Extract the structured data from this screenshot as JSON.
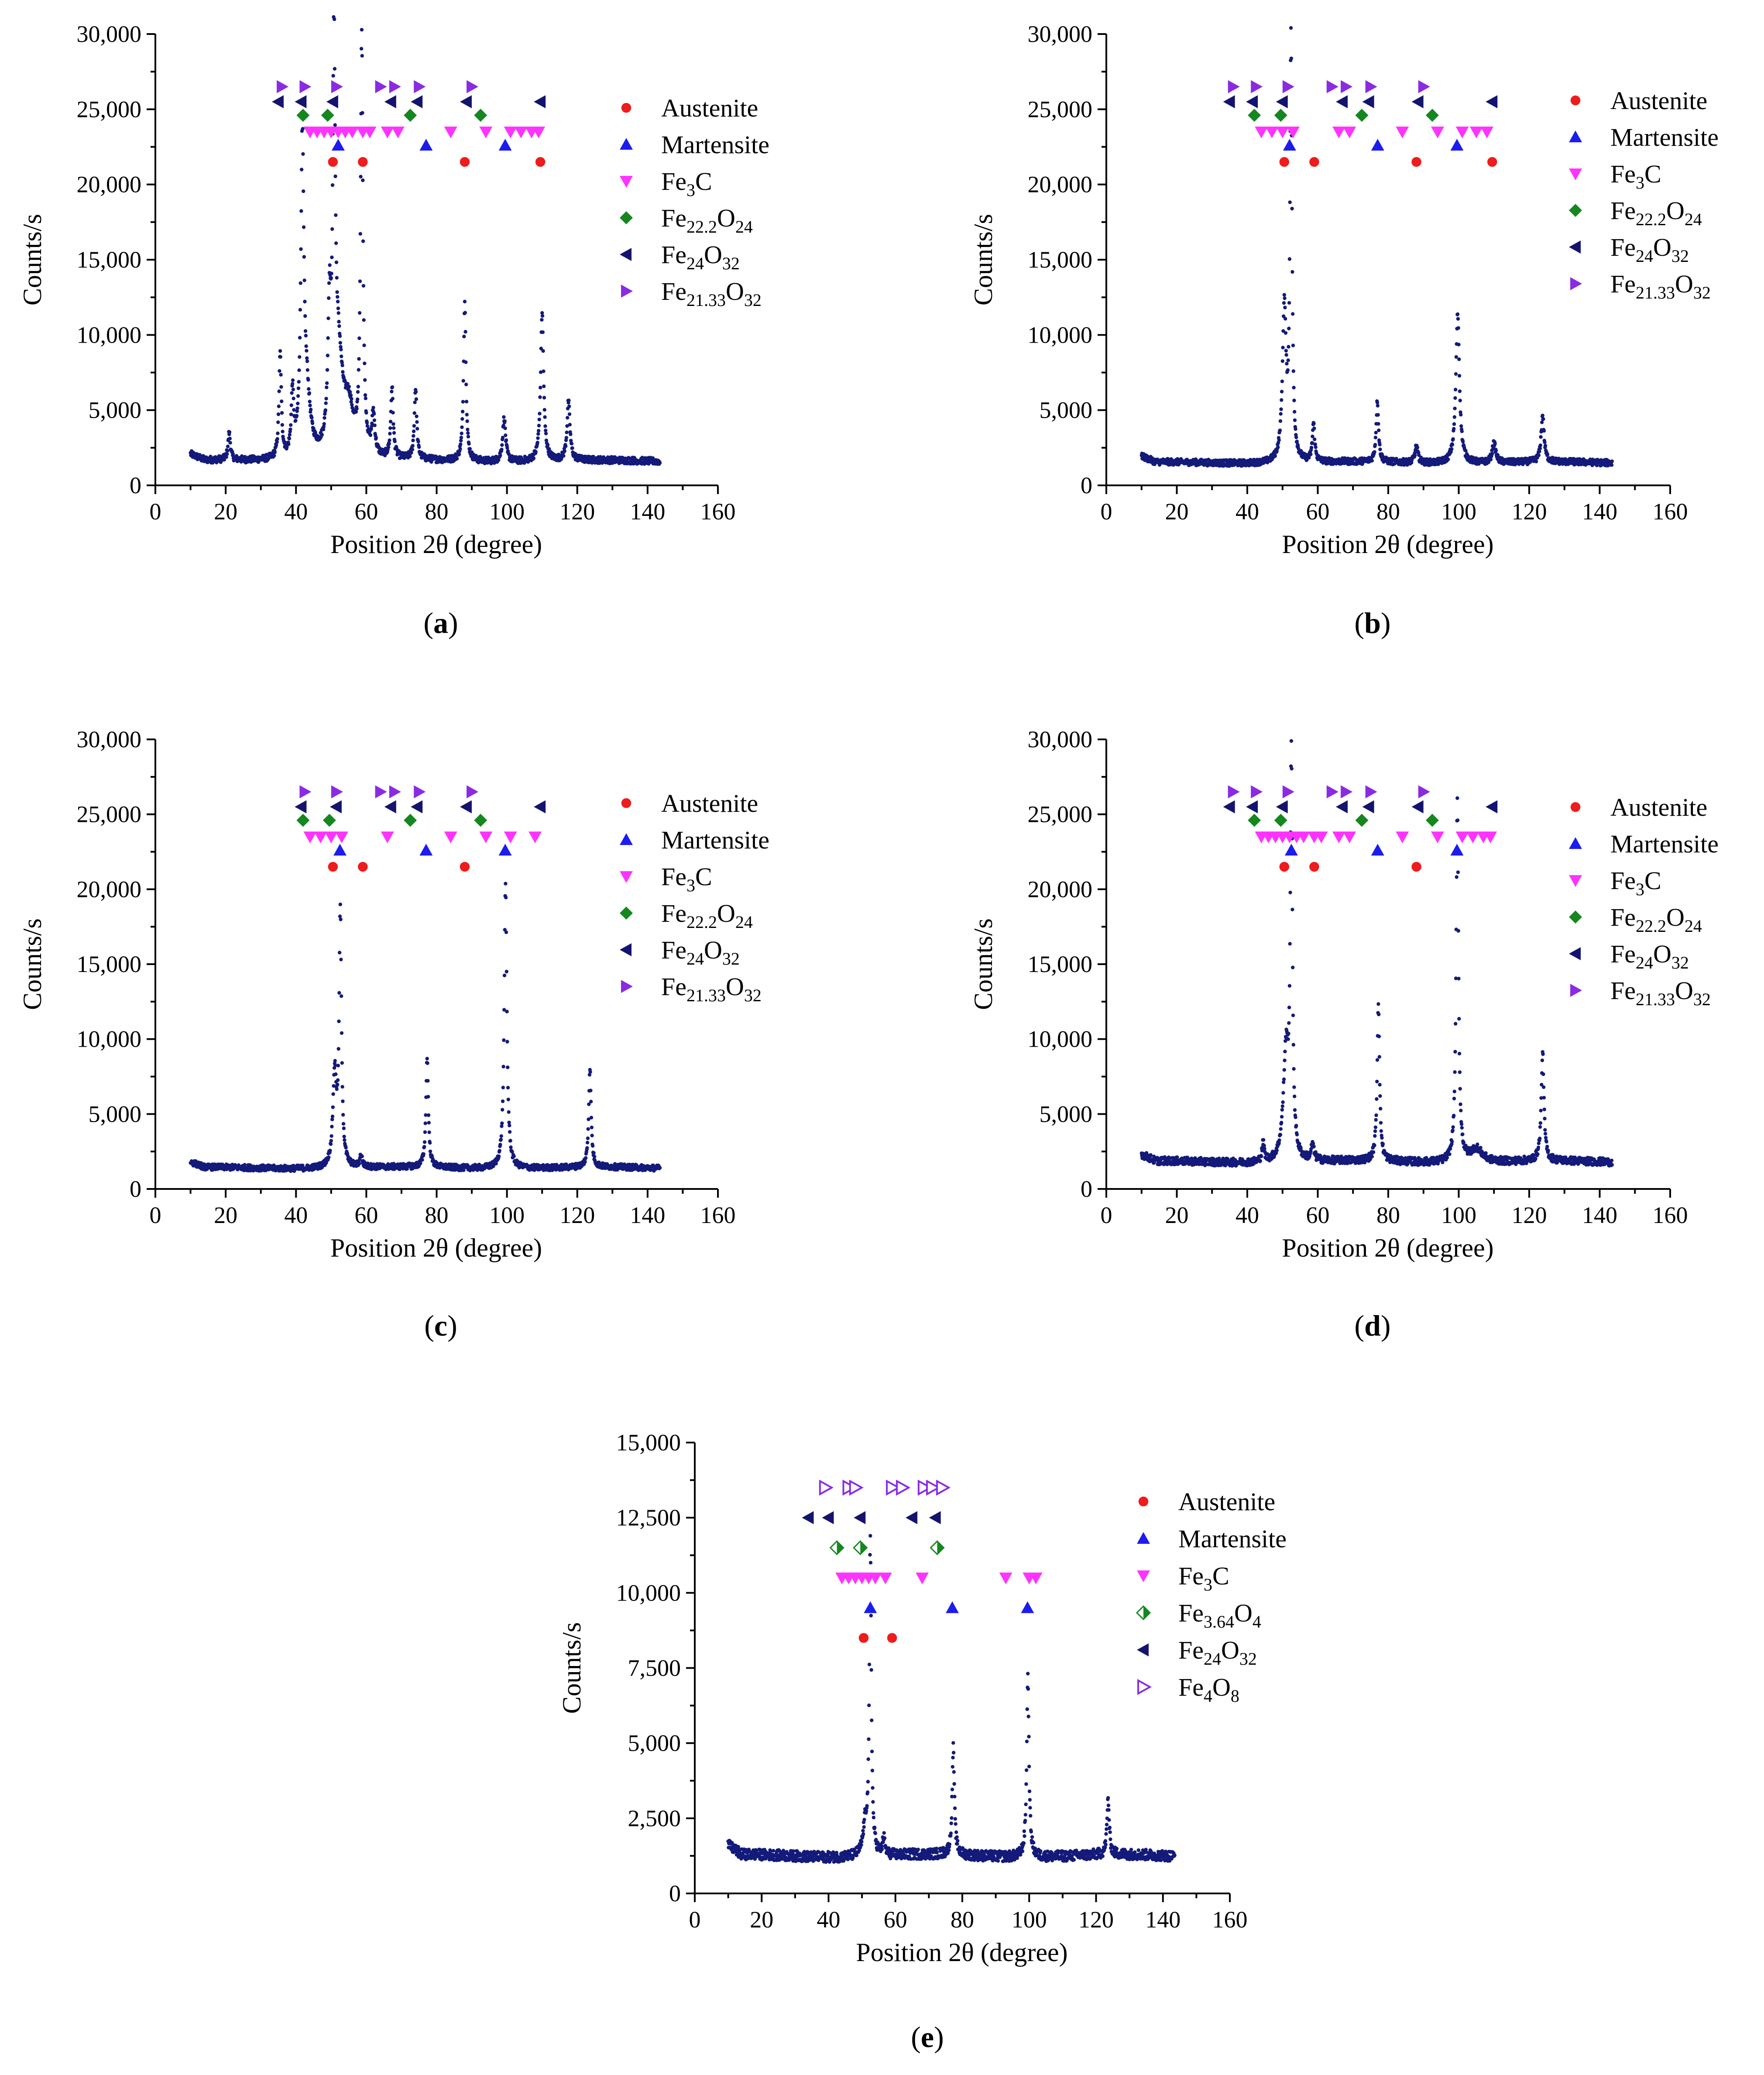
{
  "figure": {
    "colors": {
      "data": "#141a7a",
      "austenite": "#ee1c1c",
      "martensite": "#1c1cf0",
      "fe3c": "#ff33ff",
      "oxideA": "#15871f",
      "oxideB": "#14146e",
      "oxideC": "#8a2be2"
    }
  },
  "chart_data": [
    {
      "id": "a",
      "type": "scatter",
      "panel_label": "a",
      "xlabel": "Position 2θ (degree)",
      "ylabel": "Counts/s",
      "xlim": [
        0,
        160
      ],
      "ylim": [
        0,
        30000
      ],
      "xticks": [
        "0",
        "20",
        "40",
        "60",
        "80",
        "100",
        "120",
        "140",
        "160"
      ],
      "yticks": [
        "0",
        "5,000",
        "10,000",
        "15,000",
        "20,000",
        "25,000",
        "30,000"
      ],
      "ytick_values": [
        0,
        5000,
        10000,
        15000,
        20000,
        25000,
        30000
      ],
      "baseline": 1600,
      "peaks": [
        [
          21,
          3400,
          0.4
        ],
        [
          35.5,
          8500,
          0.4
        ],
        [
          39,
          5800,
          0.4
        ],
        [
          41.8,
          22000,
          0.5
        ],
        [
          43,
          5500,
          1.2
        ],
        [
          49.5,
          10000,
          0.5
        ],
        [
          50.8,
          27000,
          0.4
        ],
        [
          52,
          8000,
          1.5
        ],
        [
          55,
          4500,
          1.5
        ],
        [
          58.7,
          29500,
          0.4
        ],
        [
          62,
          4300,
          0.5
        ],
        [
          67.3,
          6300,
          0.4
        ],
        [
          74,
          6300,
          0.4
        ],
        [
          88,
          12200,
          0.4
        ],
        [
          99.2,
          4500,
          0.5
        ],
        [
          110,
          11500,
          0.5
        ],
        [
          117.5,
          5500,
          0.5
        ]
      ],
      "legend": [
        {
          "label": "Austenite",
          "marker": "circle",
          "color_key": "austenite"
        },
        {
          "label": "Martensite",
          "marker": "tri-up",
          "color_key": "martensite"
        },
        {
          "label": "Fe",
          "sub": "3",
          "label2": "C",
          "marker": "tri-down",
          "color_key": "fe3c"
        },
        {
          "label": "Fe",
          "sub": "22.2",
          "label2": "O",
          "sub2": "24",
          "marker": "diamond",
          "color_key": "oxideA"
        },
        {
          "label": "Fe",
          "sub": "24",
          "label2": "O",
          "sub2": "32",
          "marker": "tri-left",
          "color_key": "oxideB"
        },
        {
          "label": "Fe",
          "sub": "21.33",
          "label2": "O",
          "sub2": "32",
          "marker": "tri-right",
          "color_key": "oxideC"
        }
      ],
      "phase_markers": [
        {
          "marker": "circle",
          "color_key": "austenite",
          "y": 21500,
          "x": [
            50.5,
            59,
            88,
            109.5
          ]
        },
        {
          "marker": "tri-up",
          "color_key": "martensite",
          "y": 22600,
          "x": [
            52,
            77,
            99.5
          ]
        },
        {
          "marker": "tri-down",
          "color_key": "fe3c",
          "y": 23500,
          "x": [
            44,
            46,
            48,
            50,
            52,
            54,
            56,
            59,
            61,
            66,
            69,
            84,
            94,
            101,
            104,
            107,
            109
          ]
        },
        {
          "marker": "diamond",
          "color_key": "oxideA",
          "y": 24600,
          "x": [
            42,
            49,
            72.5,
            92.5
          ]
        },
        {
          "marker": "tri-left",
          "color_key": "oxideB",
          "y": 25500,
          "x": [
            35,
            41.5,
            50.5,
            67,
            74.5,
            88.5,
            109.5
          ]
        },
        {
          "marker": "tri-right",
          "color_key": "oxideC",
          "y": 26500,
          "x": [
            36,
            42.5,
            51.5,
            64,
            68,
            75,
            90
          ]
        }
      ]
    },
    {
      "id": "b",
      "type": "scatter",
      "panel_label": "b",
      "xlabel": "Position 2θ (degree)",
      "ylabel": "Counts/s",
      "xlim": [
        0,
        160
      ],
      "ylim": [
        0,
        30000
      ],
      "xticks": [
        "0",
        "20",
        "40",
        "60",
        "80",
        "100",
        "120",
        "140",
        "160"
      ],
      "yticks": [
        "0",
        "5,000",
        "10,000",
        "15,000",
        "20,000",
        "25,000",
        "30,000"
      ],
      "ytick_values": [
        0,
        5000,
        10000,
        15000,
        20000,
        25000,
        30000
      ],
      "baseline": 1500,
      "peaks": [
        [
          50.5,
          11700,
          0.6
        ],
        [
          52.4,
          29500,
          0.35
        ],
        [
          58.8,
          4000,
          0.4
        ],
        [
          76.9,
          5600,
          0.4
        ],
        [
          88,
          2600,
          0.5
        ],
        [
          99.7,
          11500,
          0.6
        ],
        [
          110,
          2800,
          0.6
        ],
        [
          123.8,
          4600,
          0.5
        ]
      ],
      "legend": [
        {
          "label": "Austenite",
          "marker": "circle",
          "color_key": "austenite"
        },
        {
          "label": "Martensite",
          "marker": "tri-up",
          "color_key": "martensite"
        },
        {
          "label": "Fe",
          "sub": "3",
          "label2": "C",
          "marker": "tri-down",
          "color_key": "fe3c"
        },
        {
          "label": "Fe",
          "sub": "22.2",
          "label2": "O",
          "sub2": "24",
          "marker": "diamond",
          "color_key": "oxideA"
        },
        {
          "label": "Fe",
          "sub": "24",
          "label2": "O",
          "sub2": "32",
          "marker": "tri-left",
          "color_key": "oxideB"
        },
        {
          "label": "Fe",
          "sub": "21.33",
          "label2": "O",
          "sub2": "32",
          "marker": "tri-right",
          "color_key": "oxideC"
        }
      ],
      "phase_markers": [
        {
          "marker": "circle",
          "color_key": "austenite",
          "y": 21500,
          "x": [
            50.5,
            59,
            88,
            109.5
          ]
        },
        {
          "marker": "tri-up",
          "color_key": "martensite",
          "y": 22600,
          "x": [
            52,
            77,
            99.5
          ]
        },
        {
          "marker": "tri-down",
          "color_key": "fe3c",
          "y": 23500,
          "x": [
            44,
            47,
            50,
            53,
            66,
            69,
            84,
            94,
            101,
            105,
            108
          ]
        },
        {
          "marker": "diamond",
          "color_key": "oxideA",
          "y": 24600,
          "x": [
            42,
            49.5,
            72.5,
            92.5
          ]
        },
        {
          "marker": "tri-left",
          "color_key": "oxideB",
          "y": 25500,
          "x": [
            35,
            41.5,
            50,
            67,
            74.5,
            88.5,
            109.5
          ]
        },
        {
          "marker": "tri-right",
          "color_key": "oxideC",
          "y": 26500,
          "x": [
            36,
            42.5,
            51.5,
            64,
            68,
            75,
            90
          ]
        }
      ]
    },
    {
      "id": "c",
      "type": "scatter",
      "panel_label": "c",
      "xlabel": "Position 2θ (degree)",
      "ylabel": "Counts/s",
      "xlim": [
        0,
        160
      ],
      "ylim": [
        0,
        30000
      ],
      "xticks": [
        "0",
        "20",
        "40",
        "60",
        "80",
        "100",
        "120",
        "140",
        "160"
      ],
      "yticks": [
        "0",
        "5,000",
        "10,000",
        "15,000",
        "20,000",
        "25,000",
        "30,000"
      ],
      "ytick_values": [
        0,
        5000,
        10000,
        15000,
        20000,
        25000,
        30000
      ],
      "baseline": 1400,
      "peaks": [
        [
          51,
          7500,
          0.6
        ],
        [
          52.6,
          18200,
          0.4
        ],
        [
          58.5,
          2200,
          0.4
        ],
        [
          77.3,
          8700,
          0.4
        ],
        [
          99.6,
          20300,
          0.45
        ],
        [
          123.6,
          8000,
          0.4
        ]
      ],
      "legend": [
        {
          "label": "Austenite",
          "marker": "circle",
          "color_key": "austenite"
        },
        {
          "label": "Martensite",
          "marker": "tri-up",
          "color_key": "martensite"
        },
        {
          "label": "Fe",
          "sub": "3",
          "label2": "C",
          "marker": "tri-down",
          "color_key": "fe3c"
        },
        {
          "label": "Fe",
          "sub": "22.2",
          "label2": "O",
          "sub2": "24",
          "marker": "diamond",
          "color_key": "oxideA"
        },
        {
          "label": "Fe",
          "sub": "24",
          "label2": "O",
          "sub2": "32",
          "marker": "tri-left",
          "color_key": "oxideB"
        },
        {
          "label": "Fe",
          "sub": "21.33",
          "label2": "O",
          "sub2": "32",
          "marker": "tri-right",
          "color_key": "oxideC"
        }
      ],
      "phase_markers": [
        {
          "marker": "circle",
          "color_key": "austenite",
          "y": 21500,
          "x": [
            50.5,
            59,
            88
          ]
        },
        {
          "marker": "tri-up",
          "color_key": "martensite",
          "y": 22600,
          "x": [
            52.5,
            77,
            99.5
          ]
        },
        {
          "marker": "tri-down",
          "color_key": "fe3c",
          "y": 23500,
          "x": [
            44,
            47,
            50,
            53,
            66,
            84,
            94,
            101,
            108
          ]
        },
        {
          "marker": "diamond",
          "color_key": "oxideA",
          "y": 24600,
          "x": [
            42,
            49.5,
            72.5,
            92.5
          ]
        },
        {
          "marker": "tri-left",
          "color_key": "oxideB",
          "y": 25500,
          "x": [
            41.5,
            51.5,
            67,
            74.5,
            88.5,
            109.5
          ]
        },
        {
          "marker": "tri-right",
          "color_key": "oxideC",
          "y": 26500,
          "x": [
            42.5,
            51.5,
            64,
            68,
            75,
            90
          ]
        }
      ]
    },
    {
      "id": "d",
      "type": "scatter",
      "panel_label": "d",
      "xlabel": "Position 2θ (degree)",
      "ylabel": "Counts/s",
      "xlim": [
        0,
        160
      ],
      "ylim": [
        0,
        30000
      ],
      "xticks": [
        "0",
        "20",
        "40",
        "60",
        "80",
        "100",
        "120",
        "140",
        "160"
      ],
      "yticks": [
        "0",
        "5,000",
        "10,000",
        "15,000",
        "20,000",
        "25,000",
        "30,000"
      ],
      "ytick_values": [
        0,
        5000,
        10000,
        15000,
        20000,
        25000,
        30000
      ],
      "baseline": 1800,
      "peaks": [
        [
          44.5,
          3000,
          0.4
        ],
        [
          51,
          9000,
          0.9
        ],
        [
          52.5,
          28200,
          0.35
        ],
        [
          58.5,
          2800,
          0.5
        ],
        [
          77.2,
          12400,
          0.4
        ],
        [
          99.6,
          25800,
          0.4
        ],
        [
          105,
          2700,
          2.0
        ],
        [
          123.8,
          9000,
          0.45
        ]
      ],
      "legend": [
        {
          "label": "Austenite",
          "marker": "circle",
          "color_key": "austenite"
        },
        {
          "label": "Martensite",
          "marker": "tri-up",
          "color_key": "martensite"
        },
        {
          "label": "Fe",
          "sub": "3",
          "label2": "C",
          "marker": "tri-down",
          "color_key": "fe3c"
        },
        {
          "label": "Fe",
          "sub": "22.2",
          "label2": "O",
          "sub2": "24",
          "marker": "diamond",
          "color_key": "oxideA"
        },
        {
          "label": "Fe",
          "sub": "24",
          "label2": "O",
          "sub2": "32",
          "marker": "tri-left",
          "color_key": "oxideB"
        },
        {
          "label": "Fe",
          "sub": "21.33",
          "label2": "O",
          "sub2": "32",
          "marker": "tri-right",
          "color_key": "oxideC"
        }
      ],
      "phase_markers": [
        {
          "marker": "circle",
          "color_key": "austenite",
          "y": 21500,
          "x": [
            50.5,
            59,
            88
          ]
        },
        {
          "marker": "tri-up",
          "color_key": "martensite",
          "y": 22600,
          "x": [
            52.5,
            77,
            99.5
          ]
        },
        {
          "marker": "tri-down",
          "color_key": "fe3c",
          "y": 23500,
          "x": [
            44,
            46,
            48,
            50,
            52,
            54,
            56,
            59,
            61,
            66,
            69,
            84,
            94,
            101,
            104,
            107,
            109
          ]
        },
        {
          "marker": "diamond",
          "color_key": "oxideA",
          "y": 24600,
          "x": [
            42,
            49.5,
            72.5,
            92.5
          ]
        },
        {
          "marker": "tri-left",
          "color_key": "oxideB",
          "y": 25500,
          "x": [
            35,
            41.5,
            50,
            67,
            74.5,
            88.5,
            109.5
          ]
        },
        {
          "marker": "tri-right",
          "color_key": "oxideC",
          "y": 26500,
          "x": [
            36,
            42.5,
            51.5,
            64,
            68,
            75,
            90
          ]
        }
      ]
    },
    {
      "id": "e",
      "type": "scatter",
      "panel_label": "e",
      "xlabel": "Position 2θ (degree)",
      "ylabel": "Counts/s",
      "xlim": [
        0,
        160
      ],
      "ylim": [
        0,
        15000
      ],
      "xticks": [
        "0",
        "20",
        "40",
        "60",
        "80",
        "100",
        "120",
        "140",
        "160"
      ],
      "yticks": [
        "0",
        "2,500",
        "5,000",
        "7,500",
        "10,000",
        "12,500",
        "15,000"
      ],
      "ytick_values": [
        0,
        2500,
        5000,
        7500,
        10000,
        12500,
        15000
      ],
      "baseline": 1250,
      "peaks": [
        [
          51,
          2200,
          0.8
        ],
        [
          52.5,
          11700,
          0.35
        ],
        [
          56.5,
          1800,
          0.4
        ],
        [
          77.3,
          4800,
          0.4
        ],
        [
          99.6,
          7300,
          0.4
        ],
        [
          123.6,
          3100,
          0.4
        ]
      ],
      "legend": [
        {
          "label": "Austenite",
          "marker": "circle",
          "color_key": "austenite"
        },
        {
          "label": "Martensite",
          "marker": "tri-up",
          "color_key": "martensite"
        },
        {
          "label": "Fe",
          "sub": "3",
          "label2": "C",
          "marker": "tri-down",
          "color_key": "fe3c"
        },
        {
          "label": "Fe",
          "sub": "3.64",
          "label2": "O",
          "sub2": "4",
          "marker": "diamond-half",
          "color_key": "oxideA"
        },
        {
          "label": "Fe",
          "sub": "24",
          "label2": "O",
          "sub2": "32",
          "marker": "tri-left",
          "color_key": "oxideB"
        },
        {
          "label": "Fe",
          "sub": "4",
          "label2": "O",
          "sub2": "8",
          "marker": "tri-right-open",
          "color_key": "oxideC"
        }
      ],
      "phase_markers": [
        {
          "marker": "circle",
          "color_key": "austenite",
          "y": 8500,
          "x": [
            50.5,
            59
          ]
        },
        {
          "marker": "tri-up",
          "color_key": "martensite",
          "y": 9500,
          "x": [
            52.5,
            77,
            99.5
          ]
        },
        {
          "marker": "tri-down",
          "color_key": "fe3c",
          "y": 10500,
          "x": [
            44,
            46,
            48,
            50,
            52,
            54,
            57,
            68,
            93,
            100,
            102
          ]
        },
        {
          "marker": "diamond-half",
          "color_key": "oxideA",
          "y": 11500,
          "x": [
            42.5,
            49.5,
            72.5
          ]
        },
        {
          "marker": "tri-left",
          "color_key": "oxideB",
          "y": 12500,
          "x": [
            34,
            40,
            49.5,
            65,
            72
          ]
        },
        {
          "marker": "tri-right-open",
          "color_key": "oxideC",
          "y": 13500,
          "x": [
            39,
            46,
            48,
            59,
            62,
            68.5,
            71,
            74
          ]
        }
      ]
    }
  ]
}
